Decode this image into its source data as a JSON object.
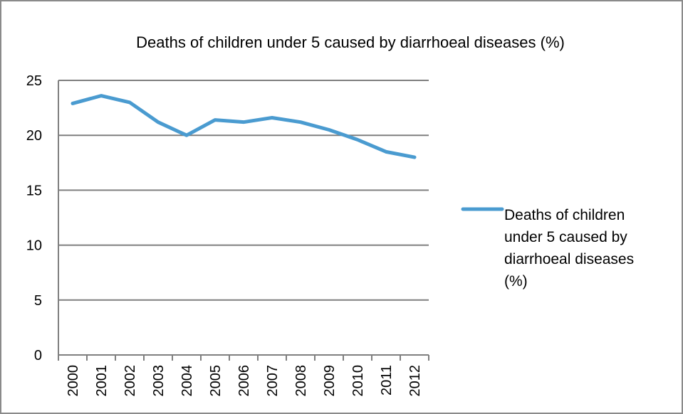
{
  "chart_data": {
    "type": "line",
    "title": "Deaths of children under 5 caused by diarrhoeal diseases (%)",
    "xlabel": "",
    "ylabel": "",
    "categories": [
      "2000",
      "2001",
      "2002",
      "2003",
      "2004",
      "2005",
      "2006",
      "2007",
      "2008",
      "2009",
      "2010",
      "2011",
      "2012"
    ],
    "series": [
      {
        "name": "Deaths of children under 5 caused by diarrhoeal diseases (%)",
        "legend_lines": [
          "Deaths of children",
          "under 5 caused by",
          "diarrhoeal diseases",
          "(%)"
        ],
        "color": "#4a9bd0",
        "values": [
          22.9,
          23.6,
          23.0,
          21.2,
          20.0,
          21.4,
          21.2,
          21.6,
          21.2,
          20.5,
          19.6,
          18.5,
          18.0
        ]
      }
    ],
    "ylim": [
      0,
      25
    ],
    "yticks": [
      0,
      5,
      10,
      15,
      20,
      25
    ],
    "grid": true,
    "legend_position": "right"
  }
}
